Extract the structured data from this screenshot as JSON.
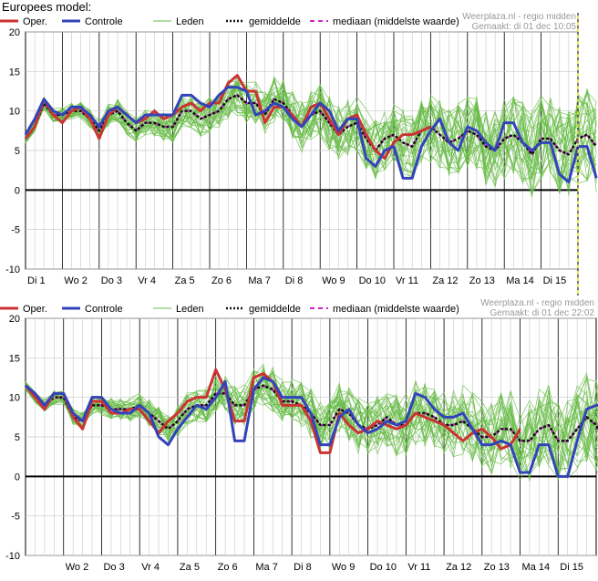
{
  "page": {
    "title": "Europees model:"
  },
  "colors": {
    "oper": "#cc3333",
    "controle": "#3344bb",
    "leden": "#66bb44",
    "gemiddelde": "#111111",
    "mediaan": "#cc22cc",
    "grid": "#c8c8c8",
    "zero_line": "#000000",
    "now_line": "#d8d800"
  },
  "chart_data": [
    {
      "type": "line",
      "title": "",
      "source": "Weerplaza.nl - regio midden",
      "made": "Gemaakt: di 01 dec 10:05",
      "ylim": [
        -10,
        20
      ],
      "yticks": [
        20,
        15,
        10,
        5,
        0,
        -5,
        -10
      ],
      "grid": true,
      "legend_position": "top",
      "legend": [
        "Oper.",
        "Controle",
        "Leden",
        "gemiddelde",
        "mediaan (middelste waarde)"
      ],
      "x_axis": "4 values per day, 15 days",
      "day_labels": [
        "Di 1",
        "Wo 2",
        "Do 3",
        "Vr 4",
        "Za 5",
        "Zo 6",
        "Ma 7",
        "Di 8",
        "Wo 9",
        "Do 10",
        "Vr 11",
        "Za 12",
        "Zo 13",
        "Ma 14",
        "Di 15"
      ],
      "series": [
        {
          "name": "Oper.",
          "values": [
            6.5,
            8,
            11.5,
            9.5,
            8.5,
            10,
            10.5,
            9,
            6.5,
            9.5,
            10.5,
            9.5,
            8.5,
            9,
            10,
            9,
            9.5,
            10.5,
            11,
            10,
            11,
            11,
            13.5,
            14.5,
            12.5,
            12.5,
            8.5,
            10.5,
            10.5,
            9.5,
            8,
            10.5,
            11,
            9,
            7,
            9,
            9.5,
            7,
            5,
            4,
            6,
            7,
            7,
            7.5,
            8
          ]
        },
        {
          "name": "Controle",
          "values": [
            7,
            9,
            11.5,
            10,
            9.5,
            10.5,
            10.5,
            9.5,
            8,
            10,
            10.5,
            9.5,
            8.5,
            9.5,
            9.5,
            9.5,
            9.5,
            12,
            12,
            11,
            10.5,
            12,
            13,
            13,
            12.5,
            9.5,
            10,
            11,
            10.5,
            9,
            8,
            9.5,
            11,
            10,
            7.5,
            9,
            9,
            4,
            3,
            5,
            5.5,
            1.5,
            1.5,
            5.5,
            7.5,
            9,
            6,
            5,
            8,
            7.5,
            6,
            5,
            8.5,
            8.5,
            6,
            5,
            6,
            6,
            2,
            1,
            5.5,
            5.5,
            1.5
          ]
        },
        {
          "name": "gemiddelde",
          "values": [
            6.5,
            8,
            11,
            9.5,
            9.5,
            10,
            10,
            9,
            7.5,
            9.5,
            10,
            8.5,
            7.5,
            8.5,
            8.5,
            8,
            8,
            10,
            10,
            9,
            9.5,
            10,
            11.5,
            12,
            11,
            11,
            9.5,
            11.5,
            11,
            9.5,
            8,
            9.5,
            10,
            8.5,
            7,
            8,
            8.5,
            6.5,
            5,
            6.5,
            7,
            6,
            5.5,
            7.5,
            8,
            7,
            6,
            6.5,
            7.5,
            7,
            5.5,
            5,
            6.5,
            7,
            6,
            4.5,
            6.5,
            6.5,
            5,
            4.5,
            6.5,
            7,
            5.5
          ]
        },
        {
          "name": "mediaan (middelste waarde)",
          "values": [
            6.5,
            8,
            11,
            9.5,
            9.5,
            10,
            10,
            9,
            7.5,
            9.5,
            10,
            8.5,
            7.5,
            8.5,
            8.5,
            8,
            8,
            10,
            10,
            9,
            9.5,
            10,
            11.5,
            12,
            11,
            11,
            9.5,
            11.5,
            11,
            9.5,
            8,
            9.5,
            10,
            8.5,
            7,
            8,
            8.5,
            6.5,
            5,
            6.5,
            7,
            6,
            5.5,
            7.5,
            8,
            7,
            6,
            6.5,
            7.5,
            7,
            5.5,
            5,
            6.5,
            7,
            6,
            4.5,
            6.5,
            6.5,
            5,
            4.5,
            6.5,
            7,
            5.5
          ]
        }
      ]
    },
    {
      "type": "line",
      "title": "",
      "source": "Weerplaza.nl - regio midden",
      "made": "Gemaakt: di 01 dec 22:02",
      "ylim": [
        -10,
        20
      ],
      "yticks": [
        20,
        15,
        10,
        5,
        0,
        -5,
        -10
      ],
      "grid": true,
      "legend_position": "top",
      "legend": [
        "Oper.",
        "Controle",
        "Leden",
        "gemiddelde",
        "mediaan (middelste waarde)"
      ],
      "x_axis": "4 values per day, 15 days",
      "day_labels": [
        "",
        "Wo 2",
        "Do 3",
        "Vr 4",
        "Za 5",
        "Zo 6",
        "Ma 7",
        "Di 8",
        "Wo 9",
        "Do 10",
        "Vr 11",
        "Za 12",
        "Zo 13",
        "Ma 14",
        "Di 15"
      ],
      "series": [
        {
          "name": "Oper.",
          "values": [
            11.5,
            10,
            8.5,
            10.5,
            10.5,
            7.5,
            6,
            9.5,
            9.5,
            8,
            8,
            8.5,
            8.5,
            7,
            5.5,
            7,
            8,
            9.5,
            10,
            10,
            13.5,
            11,
            7,
            7,
            12.5,
            13,
            12,
            9,
            9,
            9,
            7,
            3,
            3,
            8,
            6.5,
            5.5,
            6,
            7,
            6.5,
            6,
            6.5,
            8,
            7.5,
            7,
            6.5,
            5.5,
            4.5,
            5.5,
            6,
            5,
            3.5,
            4,
            6
          ]
        },
        {
          "name": "Controle",
          "values": [
            11.5,
            10.5,
            9,
            10.5,
            10.5,
            8,
            7,
            10,
            10,
            8.5,
            8,
            8,
            9,
            8,
            5,
            4,
            6,
            7.5,
            9,
            8.5,
            10,
            12,
            4.5,
            4.5,
            11,
            12.5,
            12,
            10,
            10,
            10,
            8,
            4,
            4,
            7.5,
            8.5,
            6.5,
            5.5,
            6,
            7,
            6.5,
            7,
            10.5,
            10,
            8.5,
            7.5,
            7.5,
            8,
            6,
            4,
            4,
            4.5,
            4,
            0.5,
            0.5,
            4,
            4,
            0,
            0,
            4.5,
            8.5,
            9,
            9,
            9
          ]
        },
        {
          "name": "gemiddelde",
          "values": [
            11.5,
            10,
            9,
            10,
            10,
            7.5,
            7,
            9,
            9,
            8.5,
            8.5,
            8.5,
            9,
            8,
            7,
            6,
            7,
            8.5,
            9,
            9,
            10.5,
            10.5,
            9,
            9,
            11,
            11.5,
            11,
            9.5,
            9.5,
            9,
            8,
            6.5,
            6.5,
            8.5,
            8,
            6.5,
            6,
            6.5,
            7.5,
            6.5,
            6.5,
            8,
            8,
            7.5,
            6.5,
            6.5,
            7,
            6,
            5,
            5,
            6,
            6,
            4.5,
            4.5,
            6,
            6.5,
            4.5,
            4.5,
            6,
            7.5,
            6.5,
            4,
            4,
            6
          ]
        },
        {
          "name": "mediaan (middelste waarde)",
          "values": [
            11.5,
            10,
            9,
            10,
            10,
            7.5,
            7,
            9,
            9,
            8.5,
            8.5,
            8.5,
            9,
            8,
            7,
            6,
            7,
            8.5,
            9,
            9,
            10.5,
            10.5,
            9,
            9,
            11,
            11.5,
            11,
            9.5,
            9.5,
            9,
            8,
            6.5,
            6.5,
            8.5,
            8,
            6.5,
            6,
            6.5,
            7.5,
            6.5,
            6.5,
            8,
            8,
            7.5,
            6.5,
            6.5,
            7,
            6,
            5,
            5,
            6,
            6,
            4.5,
            4.5,
            6,
            6.5,
            4.5,
            4.5,
            6,
            7.5,
            6.5,
            4,
            4,
            6
          ]
        }
      ]
    }
  ]
}
